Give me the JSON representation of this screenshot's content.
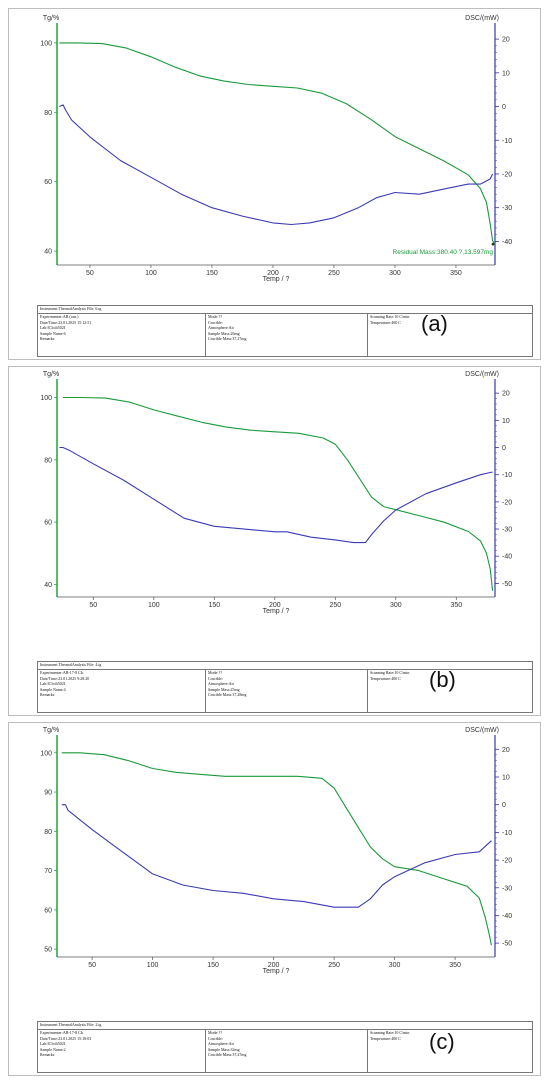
{
  "colors": {
    "tg": "#1a9a3a",
    "dsc": "#3b3bb6",
    "left_axis": "#2ea84a",
    "right_axis": "#3a3ab0"
  },
  "chart_data": [
    {
      "type": "line",
      "panel_label": "(a)",
      "left_title": "Tg/%",
      "right_title": "DSC/(mW)",
      "xlabel": "Temp / ?",
      "xlim": [
        23,
        382
      ],
      "xticks": [
        50,
        100,
        150,
        200,
        250,
        300,
        350
      ],
      "ylim_left": [
        36,
        104
      ],
      "yticks_left": [
        40,
        60,
        80,
        100
      ],
      "ylim_right": [
        -47,
        23
      ],
      "yticks_right": [
        -40,
        -30,
        -20,
        -10,
        0,
        10,
        20
      ],
      "series": [
        {
          "axis": "left",
          "color_key": "tg",
          "x": [
            25,
            40,
            60,
            80,
            100,
            120,
            140,
            160,
            180,
            200,
            220,
            240,
            260,
            280,
            300,
            320,
            340,
            360,
            370,
            375,
            378,
            380,
            382
          ],
          "y": [
            100,
            100,
            99.8,
            98.5,
            96,
            93,
            90.5,
            89,
            88,
            87.5,
            87,
            85.5,
            82.5,
            78,
            73,
            69.5,
            66,
            62,
            58,
            54,
            48,
            43,
            42
          ]
        },
        {
          "axis": "right",
          "color_key": "dsc",
          "x": [
            25,
            28,
            30,
            35,
            50,
            75,
            100,
            125,
            150,
            175,
            200,
            215,
            230,
            250,
            270,
            285,
            300,
            320,
            340,
            360,
            370,
            378,
            380
          ],
          "y": [
            0,
            0.5,
            -1,
            -4,
            -9,
            -16,
            -21,
            -26,
            -30,
            -32.5,
            -34.5,
            -35,
            -34.5,
            -33,
            -30,
            -27,
            -25.5,
            -26,
            -24.5,
            -23,
            -23,
            -21.5,
            -20
          ]
        }
      ],
      "annotation": "Residual Mass:380.40 ?,13.597mg",
      "info": {
        "header": "Instrument:ThermalAnalysis   File:  6.tg",
        "col1": [
          "Experimenter:AB (orn.)",
          "Date/Time:23.01.2025 15:12:51",
          "Lab:ICIo4t502I",
          "Sample Name:6",
          "Remarks:"
        ],
        "col2": [
          "Mode:??",
          "Crucible:",
          "Atmosphere:Air",
          "Sample Mass:26mg",
          "Crucible Mass:37,27mg"
        ],
        "col3": [
          "Scanning Rate:10 C/min",
          "Temperature:400 C"
        ]
      }
    },
    {
      "type": "line",
      "panel_label": "(b)",
      "left_title": "Tg/%",
      "right_title": "DSC/(mW)",
      "xlabel": "Temp / ?",
      "xlim": [
        20,
        382
      ],
      "xticks": [
        50,
        100,
        150,
        200,
        250,
        300,
        350
      ],
      "ylim_left": [
        36,
        104
      ],
      "yticks_left": [
        40,
        60,
        80,
        100
      ],
      "ylim_right": [
        -55,
        23
      ],
      "yticks_right": [
        -50,
        -40,
        -30,
        -20,
        -10,
        0,
        10,
        20
      ],
      "series": [
        {
          "axis": "left",
          "color_key": "tg",
          "x": [
            25,
            40,
            60,
            80,
            100,
            120,
            140,
            160,
            180,
            200,
            220,
            240,
            250,
            260,
            270,
            280,
            290,
            300,
            320,
            340,
            360,
            370,
            375,
            378,
            380
          ],
          "y": [
            100,
            100,
            99.8,
            98.5,
            96,
            94,
            92,
            90.5,
            89.5,
            89,
            88.5,
            87,
            85,
            80,
            74,
            68,
            65,
            64,
            62,
            60,
            57,
            54,
            50,
            45,
            38
          ]
        },
        {
          "axis": "right",
          "color_key": "dsc",
          "x": [
            22,
            25,
            30,
            50,
            75,
            100,
            125,
            150,
            175,
            200,
            210,
            230,
            250,
            265,
            275,
            280,
            290,
            300,
            325,
            350,
            370,
            380
          ],
          "y": [
            0,
            0,
            -1,
            -6,
            -12,
            -19,
            -26,
            -29,
            -30,
            -31,
            -31,
            -33,
            -34,
            -35,
            -35,
            -32,
            -27,
            -23,
            -17,
            -13,
            -10,
            -9
          ]
        }
      ],
      "info": {
        "header": "Instrument:ThermalAnalysis   File:  4.tg",
        "col1": [
          "Experimenter:AB-17-8 Ch.",
          "Date/Time:23.01.2025 9:28:20",
          "Lab:ICIo4t502I",
          "Sample Name:4",
          "Remarks:"
        ],
        "col2": [
          "Mode:??",
          "Crucible:",
          "Atmosphere:Air",
          "Sample Mass:25mg",
          "Crucible Mass:37,28mg"
        ],
        "col3": [
          "Scanning Rate:10 C/min",
          "Temperature:400 C"
        ]
      }
    },
    {
      "type": "line",
      "panel_label": "(c)",
      "left_title": "Tg/%",
      "right_title": "DSC/(mW)",
      "xlabel": "Temp / ?",
      "xlim": [
        21,
        383
      ],
      "xticks": [
        50,
        100,
        150,
        200,
        250,
        300,
        350
      ],
      "ylim_left": [
        48,
        103
      ],
      "yticks_left": [
        50,
        60,
        70,
        80,
        90,
        100
      ],
      "ylim_right": [
        -55,
        23
      ],
      "yticks_right": [
        -50,
        -40,
        -30,
        -20,
        -10,
        0,
        10,
        20
      ],
      "series": [
        {
          "axis": "left",
          "color_key": "tg",
          "x": [
            25,
            40,
            60,
            80,
            100,
            120,
            140,
            160,
            180,
            200,
            220,
            240,
            250,
            260,
            270,
            280,
            290,
            300,
            320,
            340,
            360,
            370,
            375,
            378,
            380
          ],
          "y": [
            100,
            100,
            99.5,
            98,
            96,
            95,
            94.5,
            94,
            94,
            94,
            94,
            93.5,
            91,
            86,
            81,
            76,
            73,
            71,
            70,
            68,
            66,
            63,
            58,
            54,
            51
          ]
        },
        {
          "axis": "right",
          "color_key": "dsc",
          "x": [
            25,
            28,
            30,
            50,
            75,
            100,
            125,
            150,
            175,
            200,
            225,
            250,
            270,
            280,
            290,
            300,
            325,
            350,
            370,
            380
          ],
          "y": [
            0,
            0,
            -2,
            -9,
            -17,
            -25,
            -29,
            -31,
            -32,
            -34,
            -35,
            -37,
            -37,
            -34,
            -29,
            -26,
            -21,
            -18,
            -17,
            -13
          ]
        }
      ],
      "info": {
        "header": "Instrument:ThermalAnalysis   File:  2.tg",
        "col1": [
          "Experimenter:AB-17-8 Ch.",
          "Date/Time:23.01.2025 15:18:03",
          "Lab:ICIo4t502I",
          "Sample Name:2",
          "Remarks:"
        ],
        "col2": [
          "Mode:??",
          "Crucible:",
          "Atmosphere:Air",
          "Sample Mass:32mg",
          "Crucible Mass:37,27mg"
        ],
        "col3": [
          "Scanning Rate:10 C/min",
          "Temperature:400 C"
        ]
      }
    }
  ]
}
